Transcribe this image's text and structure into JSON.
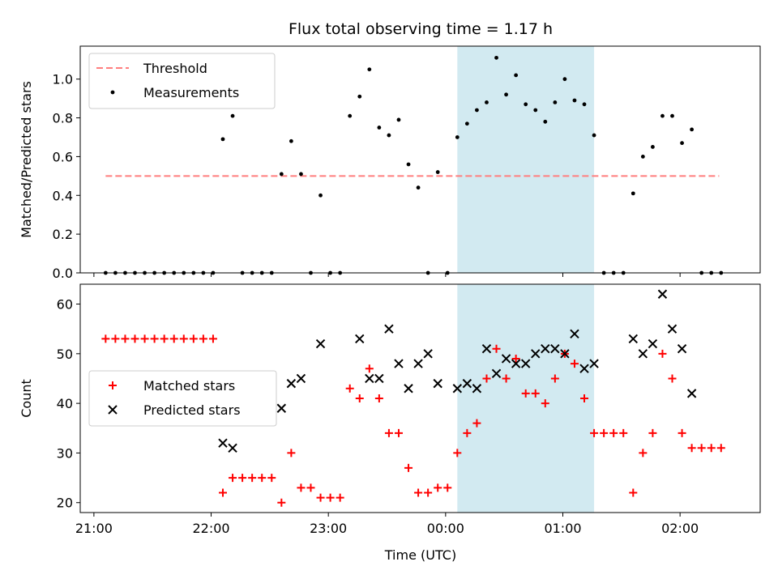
{
  "title": "Flux total observing time = 1.17 h",
  "xlabel": "Time (UTC)",
  "colors": {
    "threshold": "#ff7f7f",
    "measurement": "#000000",
    "matched": "#ff0000",
    "predicted": "#000000",
    "highlight": "#add8e6"
  },
  "chart_data": [
    {
      "type": "scatter",
      "ylabel": "Matched/Predicted stars",
      "xlim": [
        "20:53",
        "02:41"
      ],
      "ylim": [
        0,
        1.17
      ],
      "yticks": [
        "0.0",
        "0.2",
        "0.4",
        "0.6",
        "0.8",
        "1.0"
      ],
      "highlight_span": [
        "00:06",
        "01:16"
      ],
      "legend": {
        "location": "upper-left",
        "entries": [
          "Threshold",
          "Measurements"
        ]
      },
      "series": [
        {
          "name": "Threshold",
          "style": "dashed-line",
          "x": [
            "21:06",
            "02:20"
          ],
          "y": [
            0.5,
            0.5
          ]
        },
        {
          "name": "Measurements",
          "style": "points",
          "x": [
            "21:06",
            "21:11",
            "21:16",
            "21:21",
            "21:26",
            "21:31",
            "21:36",
            "21:41",
            "21:46",
            "21:51",
            "21:56",
            "22:01",
            "22:06",
            "22:11",
            "22:16",
            "22:21",
            "22:26",
            "22:31",
            "22:36",
            "22:41",
            "22:46",
            "22:51",
            "22:56",
            "23:01",
            "23:06",
            "23:11",
            "23:16",
            "23:21",
            "23:26",
            "23:31",
            "23:36",
            "23:41",
            "23:46",
            "23:51",
            "23:56",
            "00:01",
            "00:06",
            "00:11",
            "00:16",
            "00:21",
            "00:26",
            "00:31",
            "00:36",
            "00:41",
            "00:46",
            "00:51",
            "00:56",
            "01:01",
            "01:06",
            "01:11",
            "01:16",
            "01:21",
            "01:26",
            "01:31",
            "01:36",
            "01:41",
            "01:46",
            "01:51",
            "01:56",
            "02:01",
            "02:06",
            "02:11",
            "02:16",
            "02:21"
          ],
          "y": [
            0,
            0,
            0,
            0,
            0,
            0,
            0,
            0,
            0,
            0,
            0,
            0,
            0.69,
            0.81,
            0,
            0,
            0,
            0,
            0.51,
            0.68,
            0.51,
            0,
            0.4,
            0,
            0,
            0.81,
            0.91,
            1.05,
            0.75,
            0.71,
            0.79,
            0.56,
            0.44,
            0,
            0.52,
            0,
            0.7,
            0.77,
            0.84,
            0.88,
            1.11,
            0.92,
            1.02,
            0.87,
            0.84,
            0.78,
            0.88,
            1.0,
            0.89,
            0.87,
            0.71,
            0,
            0,
            0,
            0.41,
            0.6,
            0.65,
            0.81,
            0.81,
            0.67,
            0.74,
            0,
            0,
            0
          ]
        }
      ]
    },
    {
      "type": "scatter",
      "ylabel": "Count",
      "xlim": [
        "20:53",
        "02:41"
      ],
      "ylim": [
        18,
        64
      ],
      "yticks": [
        "20",
        "30",
        "40",
        "50",
        "60"
      ],
      "xticks": [
        "21:00",
        "22:00",
        "23:00",
        "00:00",
        "01:00",
        "02:00"
      ],
      "highlight_span": [
        "00:06",
        "01:16"
      ],
      "legend": {
        "location": "center-left",
        "entries": [
          "Matched stars",
          "Predicted stars"
        ]
      },
      "series": [
        {
          "name": "Matched stars",
          "marker": "+",
          "x": [
            "21:06",
            "21:11",
            "21:16",
            "21:21",
            "21:26",
            "21:31",
            "21:36",
            "21:41",
            "21:46",
            "21:51",
            "21:56",
            "22:01",
            "22:06",
            "22:11",
            "22:16",
            "22:21",
            "22:26",
            "22:31",
            "22:36",
            "22:41",
            "22:46",
            "22:51",
            "22:56",
            "23:01",
            "23:06",
            "23:11",
            "23:16",
            "23:21",
            "23:26",
            "23:31",
            "23:36",
            "23:41",
            "23:46",
            "23:51",
            "23:56",
            "00:01",
            "00:06",
            "00:11",
            "00:16",
            "00:21",
            "00:26",
            "00:31",
            "00:36",
            "00:41",
            "00:46",
            "00:51",
            "00:56",
            "01:01",
            "01:06",
            "01:11",
            "01:16",
            "01:21",
            "01:26",
            "01:31",
            "01:36",
            "01:41",
            "01:46",
            "01:51",
            "01:56",
            "02:01",
            "02:06",
            "02:11",
            "02:16",
            "02:21"
          ],
          "y": [
            53,
            53,
            53,
            53,
            53,
            53,
            53,
            53,
            53,
            53,
            53,
            53,
            22,
            25,
            25,
            25,
            25,
            25,
            20,
            30,
            23,
            23,
            21,
            21,
            21,
            43,
            41,
            47,
            41,
            34,
            34,
            27,
            22,
            22,
            23,
            23,
            30,
            34,
            36,
            45,
            51,
            45,
            49,
            42,
            42,
            40,
            45,
            50,
            48,
            41,
            34,
            34,
            34,
            34,
            22,
            30,
            34,
            50,
            45,
            34,
            31,
            31,
            31,
            31
          ]
        },
        {
          "name": "Predicted stars",
          "marker": "x",
          "x": [
            "22:06",
            "22:11",
            "22:36",
            "22:41",
            "22:46",
            "22:56",
            "23:16",
            "23:21",
            "23:26",
            "23:31",
            "23:36",
            "23:41",
            "23:46",
            "23:51",
            "23:56",
            "00:06",
            "00:11",
            "00:16",
            "00:21",
            "00:26",
            "00:31",
            "00:36",
            "00:41",
            "00:46",
            "00:51",
            "00:56",
            "01:01",
            "01:06",
            "01:11",
            "01:16",
            "01:36",
            "01:41",
            "01:46",
            "01:51",
            "01:56",
            "02:01",
            "02:06"
          ],
          "y": [
            32,
            31,
            39,
            44,
            45,
            52,
            53,
            45,
            45,
            55,
            48,
            43,
            48,
            50,
            44,
            43,
            44,
            43,
            51,
            46,
            49,
            48,
            48,
            50,
            51,
            51,
            50,
            54,
            47,
            48,
            53,
            50,
            52,
            62,
            55,
            51,
            42
          ]
        }
      ]
    }
  ]
}
